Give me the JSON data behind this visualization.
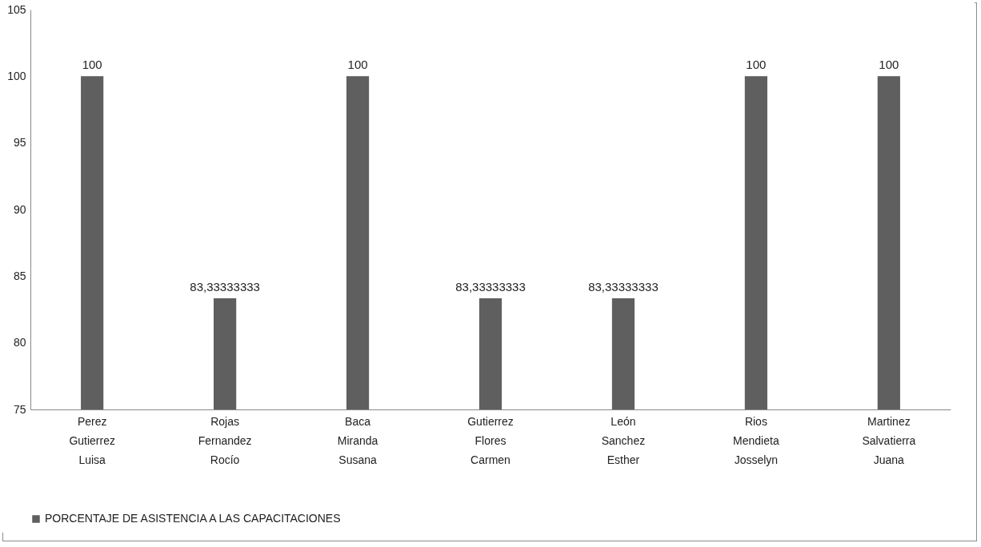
{
  "chart_data": {
    "type": "bar",
    "categories": [
      "Perez Gutierrez Luisa",
      "Rojas Fernandez Rocío",
      "Baca Miranda Susana",
      "Gutierrez Flores Carmen",
      "León Sanchez Esther",
      "Rios Mendieta Josselyn",
      "Martinez Salvatierra Juana"
    ],
    "series": [
      {
        "name": "PORCENTAJE DE ASISTENCIA A LAS CAPACITACIONES",
        "color": "#5f5f5f",
        "values": [
          100,
          83.33333333,
          100,
          83.33333333,
          83.33333333,
          100,
          100
        ],
        "value_labels": [
          "100",
          "83,33333333",
          "100",
          "83,33333333",
          "83,33333333",
          "100",
          "100"
        ]
      }
    ],
    "ylim": [
      75,
      105
    ],
    "yticks": [
      75,
      80,
      85,
      90,
      95,
      100,
      105
    ],
    "grid": false,
    "legend": "bottom"
  }
}
